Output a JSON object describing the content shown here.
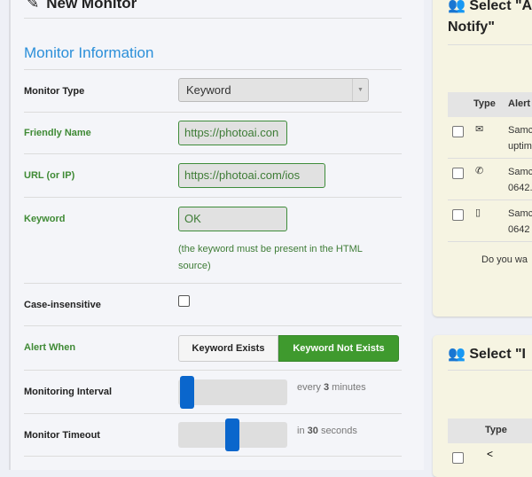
{
  "form": {
    "title": "New Monitor",
    "section": "Monitor Information",
    "monitor_type": {
      "label": "Monitor Type",
      "value": "Keyword"
    },
    "friendly_name": {
      "label": "Friendly Name",
      "value": "https://photoai.con"
    },
    "url": {
      "label": "URL (or IP)",
      "value": "https://photoai.com/ios"
    },
    "keyword": {
      "label": "Keyword",
      "value": "OK",
      "help": "(the keyword must be present in the HTML source)"
    },
    "case_insensitive": {
      "label": "Case-insensitive",
      "checked": false
    },
    "alert_when": {
      "label": "Alert When",
      "options": [
        "Keyword Exists",
        "Keyword Not Exists"
      ],
      "selected": "Keyword Not Exists"
    },
    "interval": {
      "label": "Monitoring Interval",
      "prefix": "every",
      "value": "3",
      "unit": "minutes",
      "slider_fraction": 0.05
    },
    "timeout": {
      "label": "Monitor Timeout",
      "prefix": "in",
      "value": "30",
      "unit": "seconds",
      "slider_fraction": 0.5
    }
  },
  "alert_panel": {
    "title_line1": "Select \"A",
    "title_line2": "Notify\"",
    "col_type": "Type",
    "col_alert": "Alert",
    "rows": [
      {
        "icon": "envelope-icon",
        "line1": "Samc",
        "line2": "uptim"
      },
      {
        "icon": "phone-icon",
        "line1": "Samc",
        "line2": "0642."
      },
      {
        "icon": "mobile-icon",
        "line1": "Samc",
        "line2": "0642"
      }
    ],
    "footer": "Do you wa"
  },
  "second_panel": {
    "title": "Select \"I",
    "col_type": "Type",
    "rows": [
      {
        "icon": "share-icon"
      }
    ]
  },
  "colors": {
    "accent_green": "#3f9a2e",
    "slider_blue": "#0a66cc",
    "section_blue": "#2b8fd9"
  }
}
